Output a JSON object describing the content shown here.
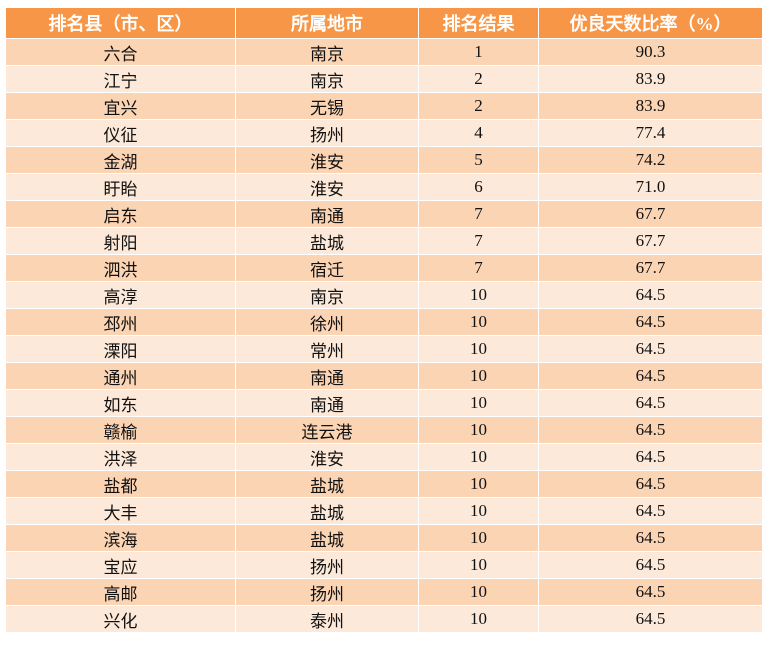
{
  "colors": {
    "header_bg": "#F79646",
    "row_odd": "#FBD4B4",
    "row_even": "#FDE9D9",
    "header_text": "#FFFFFF"
  },
  "table": {
    "headers": [
      "排名县（市、区）",
      "所属地市",
      "排名结果",
      "优良天数比率（%）"
    ],
    "rows": [
      [
        "六合",
        "南京",
        "1",
        "90.3"
      ],
      [
        "江宁",
        "南京",
        "2",
        "83.9"
      ],
      [
        "宜兴",
        "无锡",
        "2",
        "83.9"
      ],
      [
        "仪征",
        "扬州",
        "4",
        "77.4"
      ],
      [
        "金湖",
        "淮安",
        "5",
        "74.2"
      ],
      [
        "盱眙",
        "淮安",
        "6",
        "71.0"
      ],
      [
        "启东",
        "南通",
        "7",
        "67.7"
      ],
      [
        "射阳",
        "盐城",
        "7",
        "67.7"
      ],
      [
        "泗洪",
        "宿迁",
        "7",
        "67.7"
      ],
      [
        "高淳",
        "南京",
        "10",
        "64.5"
      ],
      [
        "邳州",
        "徐州",
        "10",
        "64.5"
      ],
      [
        "溧阳",
        "常州",
        "10",
        "64.5"
      ],
      [
        "通州",
        "南通",
        "10",
        "64.5"
      ],
      [
        "如东",
        "南通",
        "10",
        "64.5"
      ],
      [
        "赣榆",
        "连云港",
        "10",
        "64.5"
      ],
      [
        "洪泽",
        "淮安",
        "10",
        "64.5"
      ],
      [
        "盐都",
        "盐城",
        "10",
        "64.5"
      ],
      [
        "大丰",
        "盐城",
        "10",
        "64.5"
      ],
      [
        "滨海",
        "盐城",
        "10",
        "64.5"
      ],
      [
        "宝应",
        "扬州",
        "10",
        "64.5"
      ],
      [
        "高邮",
        "扬州",
        "10",
        "64.5"
      ],
      [
        "兴化",
        "泰州",
        "10",
        "64.5"
      ]
    ]
  }
}
